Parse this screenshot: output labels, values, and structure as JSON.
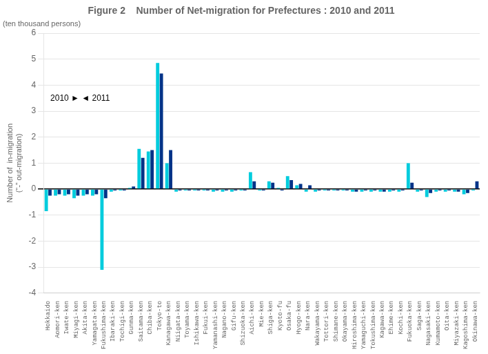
{
  "chart_data": {
    "type": "bar",
    "title": "Figure 2    Number of Net-migration for Prefectures : 2010 and 2011",
    "subtitle": "(ten thousand persons)",
    "ylabel": "Number of  in-migration\n(“-” out-migration)",
    "annotations": [
      "2010 ► ◄ 2011"
    ],
    "categories": [
      "Hokkaido",
      "Aomori-ken",
      "Iwate-ken",
      "Miyagi-ken",
      "Akita-ken",
      "Yamagata-ken",
      "Fukushima-ken",
      "Ibaraki-ken",
      "Tochigi-ken",
      "Gunma-ken",
      "Saitama-ken",
      "Chiba-ken",
      "Tokyo-to",
      "Kanagawa-ken",
      "Niigata-ken",
      "Toyama-ken",
      "Ishikawa-ken",
      "Fukui-ken",
      "Yamanashi-ken",
      "Nagano-ken",
      "Gifu-ken",
      "Shizuoka-ken",
      "Aichi-ken",
      "Mie-ken",
      "Shiga-ken",
      "Kyoto-fu",
      "Osaka-fu",
      "Hyogo-ken",
      "Nara-ken",
      "Wakayama-ken",
      "Tottori-ken",
      "Shimane-ken",
      "Okayama-ken",
      "Hiroshima-ken",
      "Yamaguchi-ken",
      "Tokushima-ken",
      "Kagawa-ken",
      "Ehime-ken",
      "Kochi-ken",
      "Fukuoka-ken",
      "Saga-ken",
      "Nagasaki-ken",
      "Kumamoto-ken",
      "Oita-ken",
      "Miyazaki-ken",
      "Kagoshima-ken",
      "Okinawa-ken"
    ],
    "series": [
      {
        "name": "2010",
        "color": "#00CCDD",
        "values": [
          -0.85,
          -0.25,
          -0.25,
          -0.35,
          -0.25,
          -0.25,
          -3.1,
          -0.1,
          -0.05,
          0.05,
          1.55,
          1.45,
          4.85,
          1.0,
          -0.1,
          -0.05,
          -0.05,
          -0.05,
          -0.1,
          -0.1,
          -0.1,
          -0.05,
          0.65,
          -0.05,
          0.3,
          0.05,
          0.5,
          0.15,
          -0.1,
          -0.1,
          -0.05,
          -0.05,
          -0.05,
          -0.1,
          -0.1,
          -0.1,
          -0.1,
          -0.1,
          -0.1,
          1.0,
          -0.1,
          -0.3,
          -0.1,
          -0.1,
          -0.1,
          -0.2,
          -0.05
        ]
      },
      {
        "name": "2011",
        "color": "#003388",
        "values": [
          -0.25,
          -0.2,
          -0.2,
          -0.25,
          -0.2,
          -0.2,
          -0.35,
          -0.05,
          -0.05,
          0.1,
          1.2,
          1.5,
          4.45,
          1.5,
          -0.05,
          -0.05,
          -0.05,
          -0.05,
          -0.05,
          -0.05,
          -0.05,
          -0.05,
          0.3,
          -0.05,
          0.25,
          -0.05,
          0.35,
          0.2,
          0.15,
          -0.05,
          -0.05,
          -0.05,
          -0.05,
          -0.1,
          -0.05,
          -0.05,
          -0.1,
          -0.05,
          -0.05,
          0.25,
          -0.05,
          -0.15,
          -0.05,
          -0.05,
          -0.1,
          -0.15,
          0.3
        ]
      }
    ],
    "ylim": [
      -4,
      6
    ],
    "yticks": [
      -4,
      -3,
      -2,
      -1,
      0,
      1,
      2,
      3,
      4,
      5,
      6
    ],
    "grid": true
  }
}
